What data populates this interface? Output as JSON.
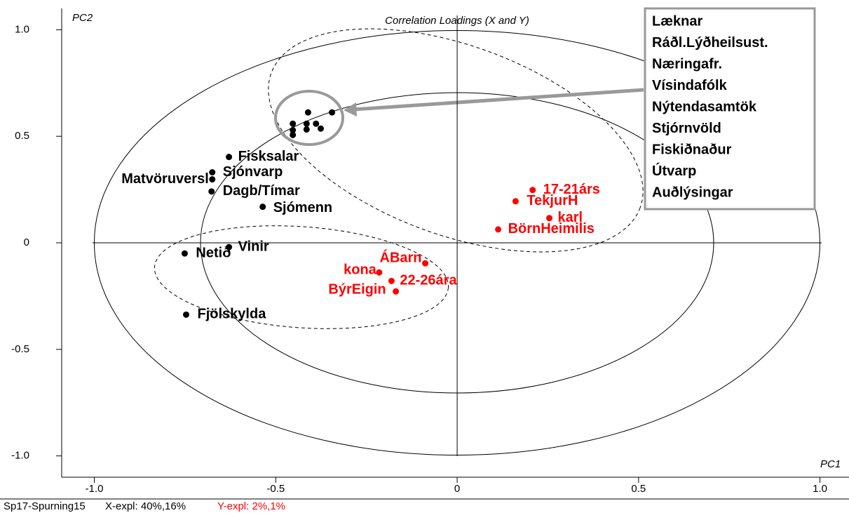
{
  "chart_data": {
    "type": "scatter",
    "title": "Correlation Loadings (X and Y)",
    "x_label": "PC1",
    "y_label": "PC2",
    "xlim": [
      -1.09,
      1.08
    ],
    "ylim": [
      -1.1,
      1.1
    ],
    "xticks": [
      {
        "value": -1,
        "label": "-1.0"
      },
      -0.5,
      0,
      0.5,
      {
        "value": 1,
        "label": "1.0"
      }
    ],
    "yticks": [
      {
        "value": -1,
        "label": "-1.0"
      },
      -0.5,
      0,
      0.5,
      {
        "value": 1,
        "label": "1.0"
      }
    ],
    "series": [
      {
        "color": "#000000",
        "labels": [
          "Fisksalar",
          "Sjónvarp",
          "Matvöruversl",
          "Dagb/Tímar",
          "Sjómenn",
          "Netið",
          "Vinir",
          "Fjölskylda"
        ],
        "x": [
          -0.629,
          -0.675,
          -0.675,
          -0.677,
          -0.536,
          -0.751,
          -0.629,
          -0.747
        ],
        "values": [
          0.403,
          0.331,
          0.298,
          0.241,
          0.169,
          -0.05,
          -0.02,
          -0.337
        ]
      },
      {
        "color": "#000000",
        "x": [
          -0.345,
          -0.411,
          -0.453,
          -0.453,
          -0.453,
          -0.415,
          -0.415,
          -0.389,
          -0.376
        ],
        "values": [
          0.612,
          0.612,
          0.559,
          0.529,
          0.506,
          0.559,
          0.532,
          0.559,
          0.536
        ]
      },
      {
        "color": "#ff0000",
        "labels": [
          "17-21árs",
          "TekjurH",
          "karl",
          "BörnHeimilis",
          "ÁBarn",
          "kona",
          "22-26ára",
          "BýrEigin"
        ],
        "x": [
          0.208,
          0.161,
          0.254,
          0.113,
          -0.088,
          -0.215,
          -0.181,
          -0.169
        ],
        "values": [
          0.248,
          0.195,
          0.116,
          0.063,
          -0.096,
          -0.139,
          -0.179,
          -0.228
        ]
      }
    ],
    "legend_box": [
      "Læknar",
      "Ráðl.Lýðheilsust.",
      "Næringafr.",
      "Vísindafólk",
      "Nýtendasamtök",
      "Stjórnvöld",
      "Fiskiðnaður",
      "Útvarp",
      "Auðlýsingar"
    ],
    "footer": {
      "id": "Sp17-Spurning15",
      "x_expl": "X-expl: 40%,16%",
      "y_expl": "Y-expl: 2%,1%"
    }
  }
}
